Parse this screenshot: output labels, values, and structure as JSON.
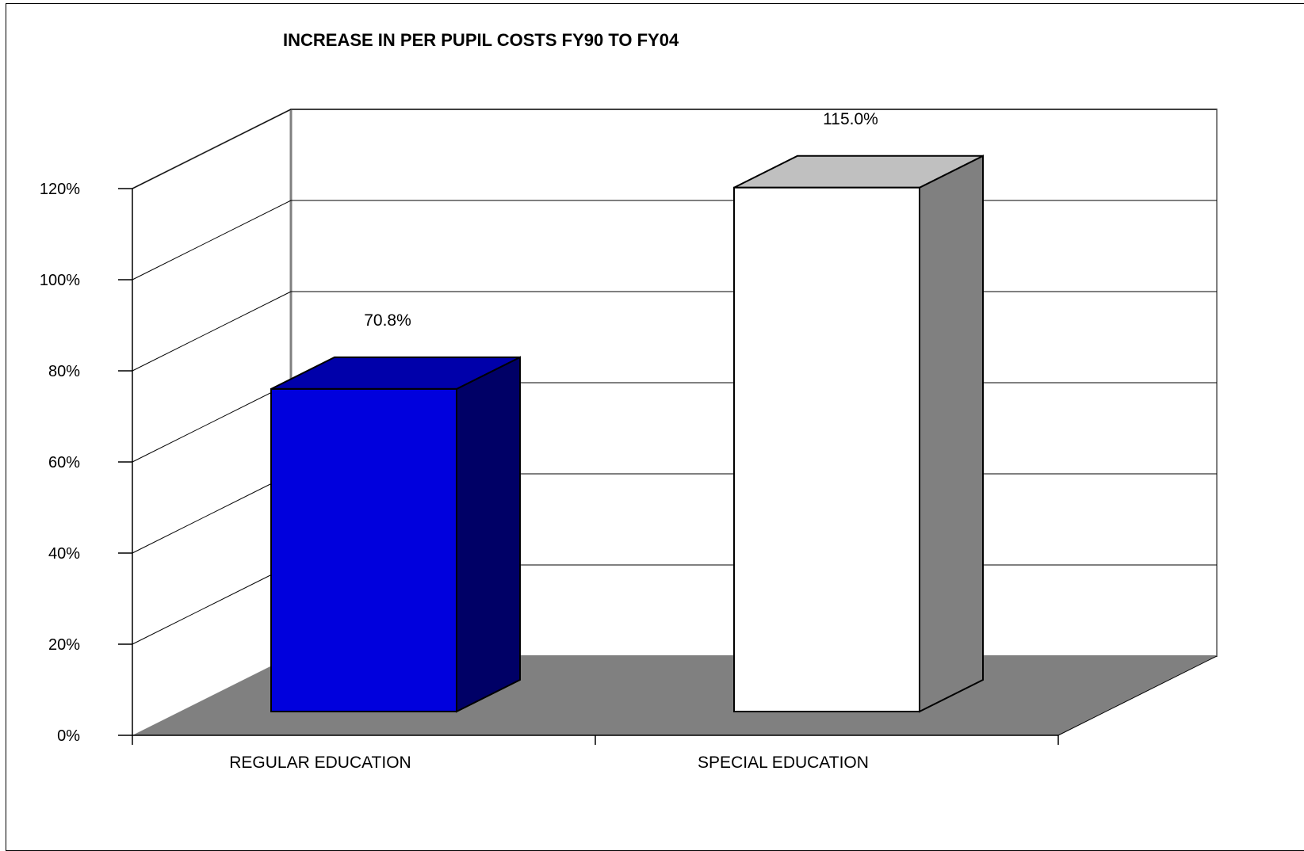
{
  "chart_data": {
    "type": "bar",
    "title": "INCREASE IN PER PUPIL COSTS FY90 TO FY04",
    "xlabel": "",
    "ylabel": "",
    "categories": [
      "REGULAR EDUCATION",
      "SPECIAL EDUCATION"
    ],
    "values": [
      70.8,
      115.0
    ],
    "data_labels": [
      "70.8%",
      "115.0%"
    ],
    "ylim": [
      0,
      120
    ],
    "y_ticks": [
      0,
      20,
      40,
      60,
      80,
      100,
      120
    ],
    "y_tick_labels": [
      "0%",
      "20%",
      "40%",
      "60%",
      "80%",
      "100%",
      "120%"
    ],
    "three_d": true,
    "grid": true,
    "legend": "none",
    "colors": {
      "bars_front": [
        "#0000DD",
        "#FFFFFF"
      ],
      "bars_top": [
        "#0000AA",
        "#C0C0C0"
      ],
      "bars_side": [
        "#000066",
        "#808080"
      ],
      "floor": "#808080",
      "walls": "#FFFFFF",
      "wall_edge": "#808080"
    }
  }
}
